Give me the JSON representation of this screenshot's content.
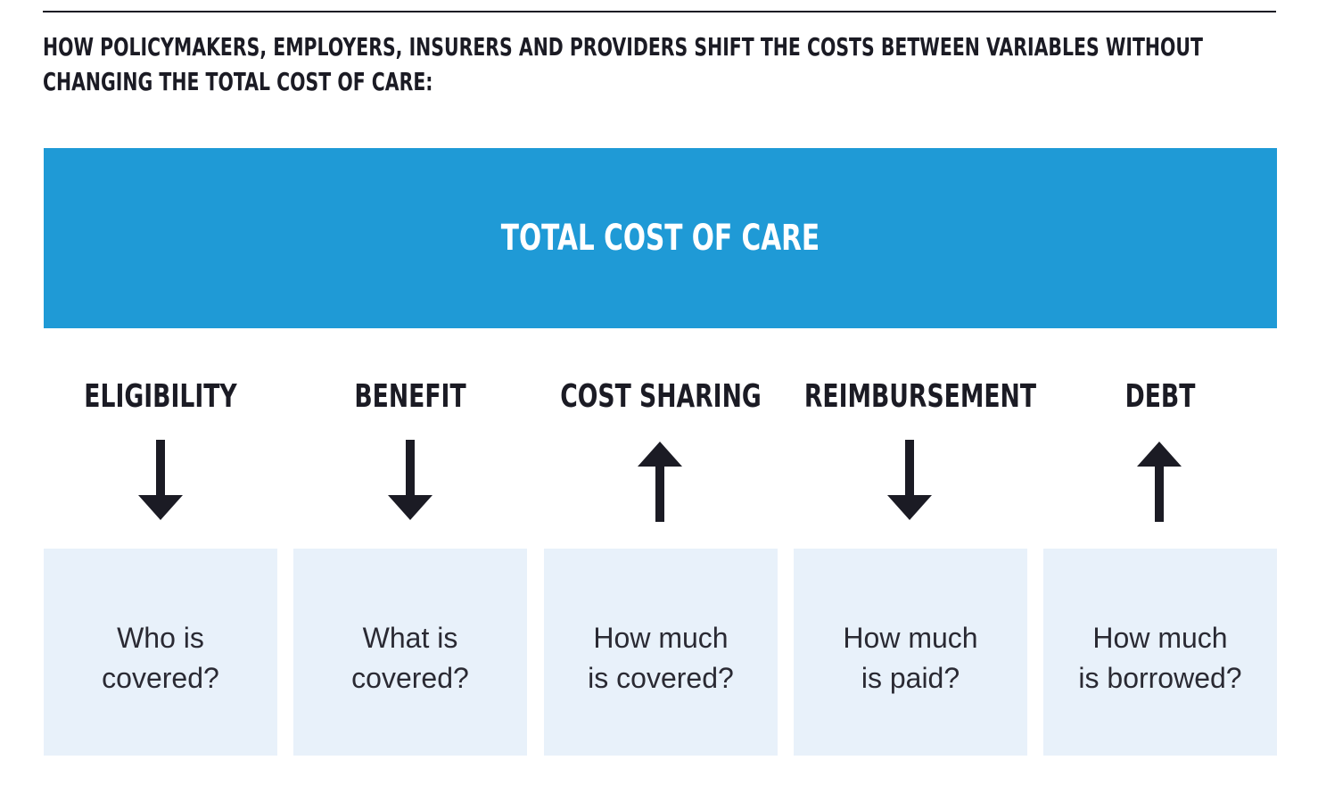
{
  "heading": {
    "line1": "HOW POLICYMAKERS, EMPLOYERS, INSURERS AND PROVIDERS SHIFT THE COSTS BETWEEN VARIABLES WITHOUT",
    "line2": "CHANGING THE TOTAL COST OF CARE:"
  },
  "total": {
    "label": "TOTAL COST OF CARE"
  },
  "colors": {
    "accent": "#1f9ad6",
    "box_fill": "#e8f1fa",
    "text_dark": "#1b1b24"
  },
  "variables": [
    {
      "label": "ELIGIBILITY",
      "direction": "down",
      "question_line1": "Who is",
      "question_line2": "covered?"
    },
    {
      "label": "BENEFIT",
      "direction": "down",
      "question_line1": "What is",
      "question_line2": "covered?"
    },
    {
      "label": "COST SHARING",
      "direction": "up",
      "question_line1": "How much",
      "question_line2": "is covered?"
    },
    {
      "label": "REIMBURSEMENT",
      "direction": "down",
      "question_line1": "How much",
      "question_line2": "is paid?"
    },
    {
      "label": "DEBT",
      "direction": "up",
      "question_line1": "How much",
      "question_line2": "is borrowed?"
    }
  ]
}
